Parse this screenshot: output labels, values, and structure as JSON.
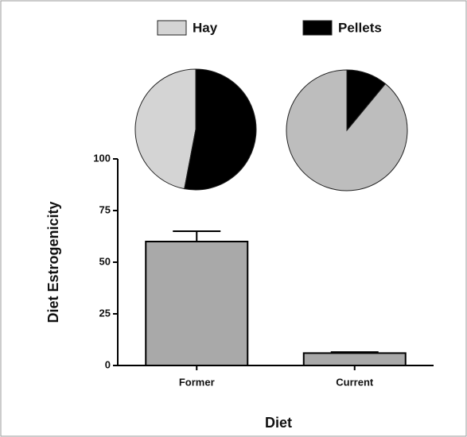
{
  "chart_data": [
    {
      "type": "bar",
      "categories": [
        "Former",
        "Current"
      ],
      "values": [
        60,
        6
      ],
      "errors": [
        5,
        0.5
      ],
      "color": "#a9a9a9",
      "ylabel": "Diet Estrogenicity",
      "xlabel": "Diet",
      "ylim": [
        0,
        100
      ],
      "yticks": [
        0,
        25,
        50,
        75,
        100
      ]
    },
    {
      "type": "pie",
      "categories": [
        "Hay",
        "Pellets"
      ],
      "values": [
        47,
        53
      ],
      "colors": [
        "#d4d4d4",
        "#000000"
      ]
    },
    {
      "type": "pie",
      "categories": [
        "Hay",
        "Pellets"
      ],
      "values": [
        89,
        11
      ],
      "colors": [
        "#bdbdbd",
        "#000000"
      ]
    }
  ]
}
